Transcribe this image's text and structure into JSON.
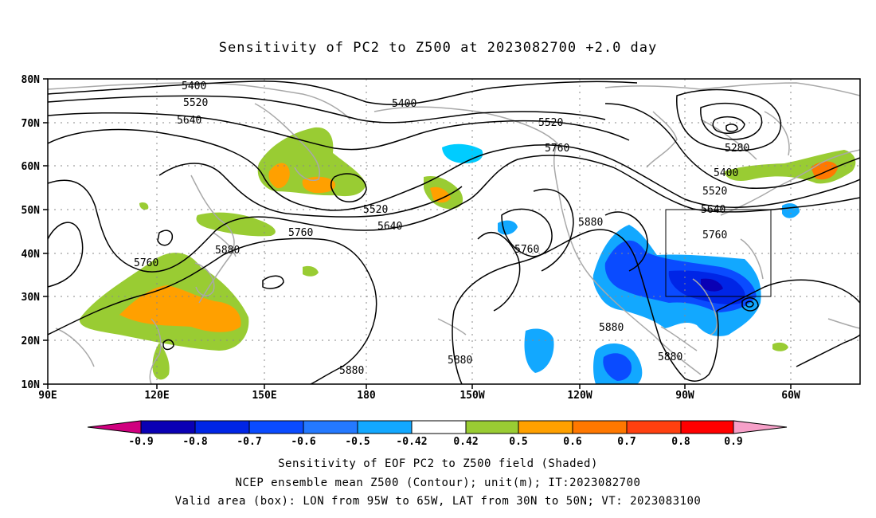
{
  "title": "Sensitivity of PC2 to Z500 at 2023082700 +2.0 day",
  "lat_labels": [
    "80N",
    "70N",
    "60N",
    "50N",
    "40N",
    "30N",
    "20N",
    "10N"
  ],
  "lon_labels": [
    "90E",
    "120E",
    "150E",
    "180",
    "150W",
    "120W",
    "90W",
    "60W"
  ],
  "contour_labels": {
    "c5400a": "5400",
    "c5400b": "5400",
    "c5400c": "5400",
    "c5520a": "5520",
    "c5520b": "5520",
    "c5520c": "5520",
    "c5520d": "5520",
    "c5640a": "5640",
    "c5640b": "5640",
    "c5640c": "5640",
    "c5760a": "5760",
    "c5760b": "5760",
    "c5760c": "5760",
    "c5760d": "5760",
    "c5760e": "5760",
    "c5880a": "5880",
    "c5880b": "5880",
    "c5880c": "5880",
    "c5880d": "5880",
    "c5880e": "5880",
    "c5880f": "5880",
    "c5280": "5280"
  },
  "colorbar": {
    "labels": [
      "-0.9",
      "-0.8",
      "-0.7",
      "-0.6",
      "-0.5",
      "-0.42",
      "0.42",
      "0.5",
      "0.6",
      "0.7",
      "0.8",
      "0.9"
    ],
    "colors": [
      "#0a00b4",
      "#0025e6",
      "#0a4bff",
      "#2479ff",
      "#12a8ff",
      "#00ccff",
      "#ffffff",
      "#99cc33",
      "#ffa000",
      "#ff7800",
      "#ff4010",
      "#ff0000"
    ],
    "low_color": "#d0007f",
    "high_color": "#f6a0c8"
  },
  "caption": [
    "Sensitivity of EOF PC2 to Z500 field (Shaded)",
    "NCEP ensemble mean Z500 (Contour); unit(m); IT:2023082700",
    "Valid area (box): LON from 95W to 65W, LAT from 30N to 50N; VT: 2023083100"
  ],
  "colors": {
    "contour": "#000000",
    "coast": "#a8a8a8",
    "grid": "#888888"
  }
}
